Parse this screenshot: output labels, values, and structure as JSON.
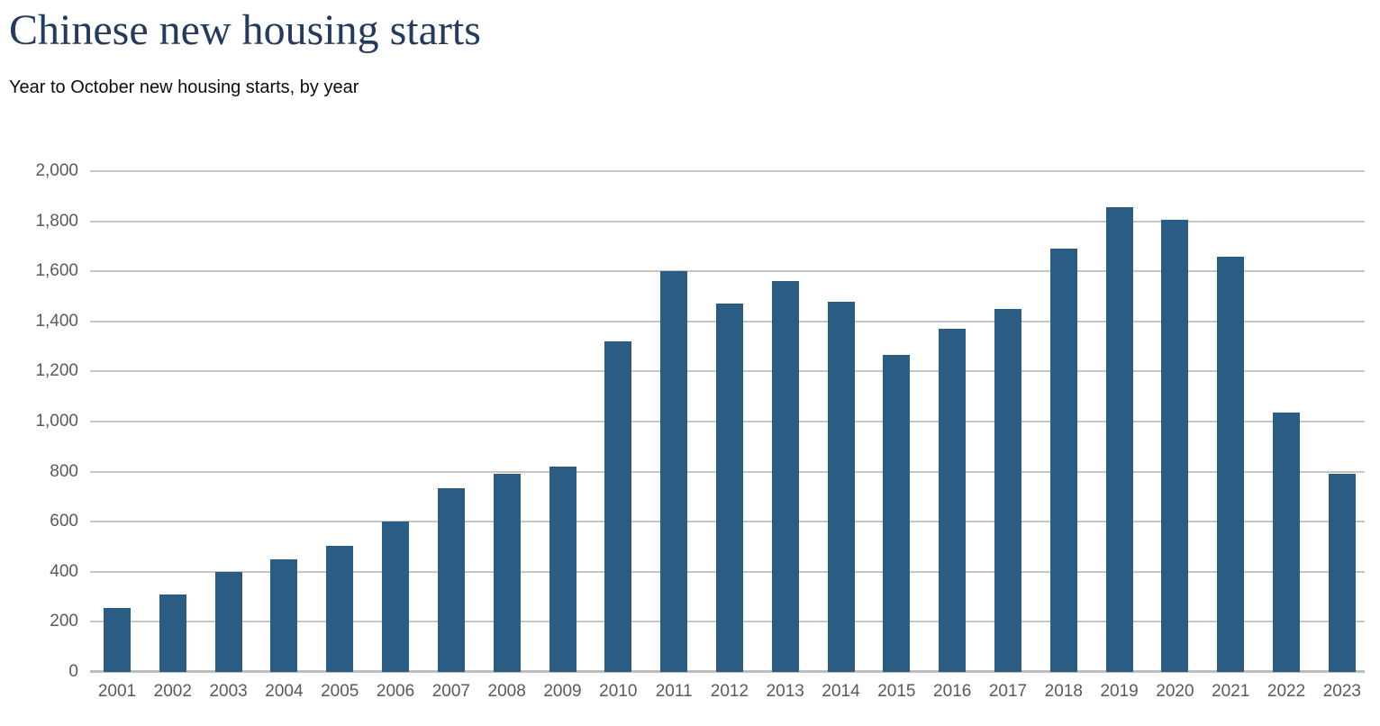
{
  "header": {
    "title": "Chinese new housing starts",
    "subtitle": "Year to October new housing starts, by year"
  },
  "colors": {
    "title": "#243b5e",
    "subtitle": "#0d0d0d",
    "bar": "#2a5c84",
    "axis_text": "#5a5a5a",
    "gridline": "#c6c6c6",
    "baseline": "#bdbdbd",
    "background": "#ffffff"
  },
  "chart_data": {
    "type": "bar",
    "title": "Chinese new housing starts",
    "subtitle": "Year to October new housing starts, by year",
    "categories": [
      "2001",
      "2002",
      "2003",
      "2004",
      "2005",
      "2006",
      "2007",
      "2008",
      "2009",
      "2010",
      "2011",
      "2012",
      "2013",
      "2014",
      "2015",
      "2016",
      "2017",
      "2018",
      "2019",
      "2020",
      "2021",
      "2022",
      "2023"
    ],
    "values": [
      255,
      310,
      400,
      450,
      505,
      600,
      735,
      790,
      820,
      1320,
      1600,
      1470,
      1560,
      1480,
      1265,
      1370,
      1450,
      1690,
      1855,
      1805,
      1660,
      1035,
      790
    ],
    "xlabel": "",
    "ylabel": "",
    "ylim": [
      0,
      2000
    ],
    "ytick_interval": 200,
    "ytick_labels": [
      "0",
      "200",
      "400",
      "600",
      "800",
      "1,000",
      "1,200",
      "1,400",
      "1,600",
      "1,800",
      "2,000"
    ],
    "grid": true,
    "legend_position": "none",
    "bar_color": "#2a5c84"
  }
}
